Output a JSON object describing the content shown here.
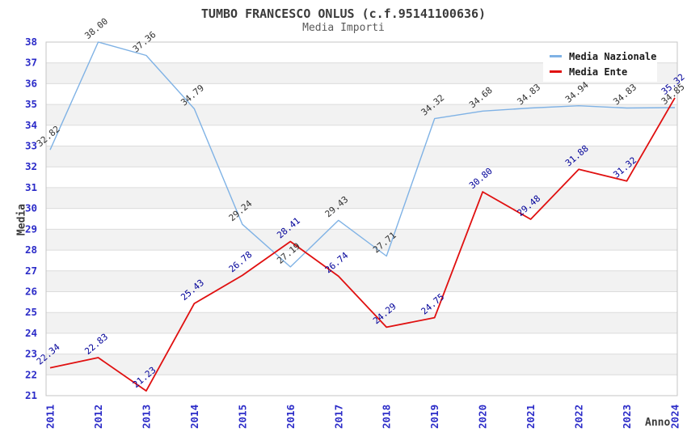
{
  "header": {
    "title": "TUMBO FRANCESCO ONLUS (c.f.95141100636)",
    "subtitle": "Media Importi"
  },
  "chart_data": {
    "type": "line",
    "title": "TUMBO FRANCESCO ONLUS (c.f.95141100636)",
    "subtitle": "Media Importi",
    "xlabel": "Anno",
    "ylabel": "Media",
    "ylim": [
      21,
      38
    ],
    "y_ticks": [
      21,
      22,
      23,
      24,
      25,
      26,
      27,
      28,
      29,
      30,
      31,
      32,
      33,
      34,
      35,
      36,
      37,
      38
    ],
    "categories": [
      "2011",
      "2012",
      "2013",
      "2014",
      "2015",
      "2016",
      "2017",
      "2018",
      "2019",
      "2020",
      "2021",
      "2022",
      "2023",
      "2024"
    ],
    "series": [
      {
        "name": "Media Nazionale",
        "color": "#7FB2E5",
        "label_color": "#303030",
        "values": [
          32.82,
          38.0,
          37.36,
          34.79,
          29.24,
          27.19,
          29.43,
          27.71,
          34.32,
          34.68,
          34.83,
          34.94,
          34.83,
          34.85
        ]
      },
      {
        "name": "Media Ente",
        "color": "#E01010",
        "label_color": "#000099",
        "values": [
          22.34,
          22.83,
          21.23,
          25.43,
          26.78,
          28.41,
          26.74,
          24.29,
          24.75,
          30.8,
          29.48,
          31.88,
          31.32,
          35.32
        ]
      }
    ],
    "grid": "horizontal alternating bands, gridline every 1 unit",
    "legend_position": "top-right",
    "data_labels": "each point labeled with value, rotated -40deg"
  },
  "colors": {
    "axis_tick": "#2B2BC8",
    "band_gray": "#F2F2F2",
    "band_white": "#FFFFFF",
    "gridline": "#DCDCDC",
    "plot_border": "#C4C4C4",
    "title_text": "#3B3B3B"
  }
}
